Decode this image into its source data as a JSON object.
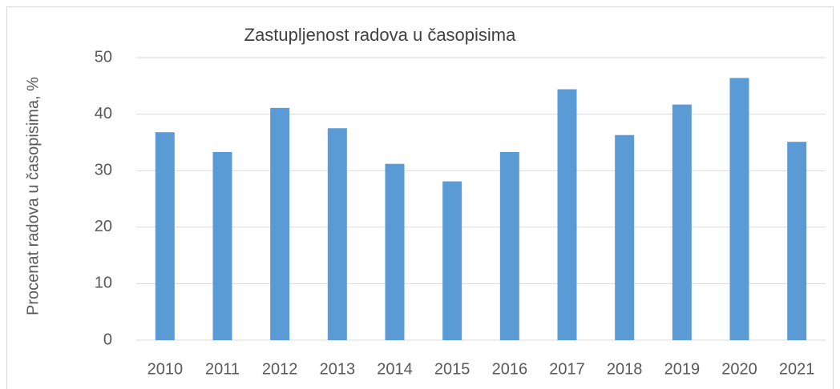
{
  "chart_data": {
    "type": "bar",
    "title": "Zastupljenost radova u časopisima",
    "y_label": "Procenat radova u časopisima, %",
    "categories": [
      "2010",
      "2011",
      "2012",
      "2013",
      "2014",
      "2015",
      "2016",
      "2017",
      "2018",
      "2019",
      "2020",
      "2021"
    ],
    "values": [
      36.8,
      33.3,
      41.1,
      37.5,
      31.2,
      28.1,
      33.3,
      44.4,
      36.3,
      41.7,
      46.4,
      35.1
    ],
    "color": "#5b9bd5",
    "ylim": [
      0,
      50
    ],
    "yticks": [
      0,
      10,
      20,
      30,
      40,
      50
    ],
    "grid": true
  }
}
